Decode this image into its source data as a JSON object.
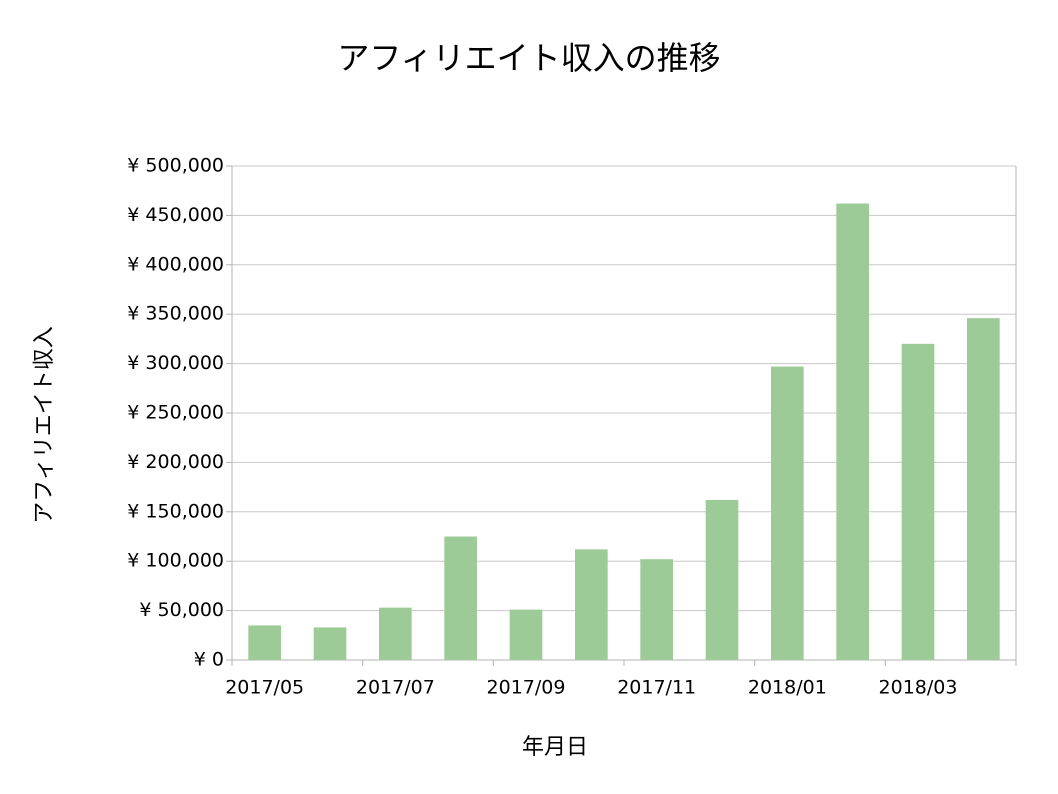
{
  "chart_data": {
    "type": "bar",
    "title": "アフィリエイト収入の推移",
    "x_label": "年月日",
    "y_label": "アフィリエイト収入",
    "categories": [
      "2017/05",
      null,
      "2017/07",
      null,
      "2017/09",
      null,
      "2017/11",
      null,
      "2018/01",
      null,
      "2018/03",
      null
    ],
    "values": [
      35000,
      33000,
      53000,
      125000,
      51000,
      112000,
      102000,
      162000,
      297000,
      462000,
      320000,
      346000
    ],
    "color": "#9dcb97",
    "ylim": [
      0,
      500000
    ],
    "yticks": [
      {
        "value": 0,
        "label": "¥ 0"
      },
      {
        "value": 50000,
        "label": "¥ 50,000"
      },
      {
        "value": 100000,
        "label": "¥ 100,000"
      },
      {
        "value": 150000,
        "label": "¥ 150,000"
      },
      {
        "value": 200000,
        "label": "¥ 200,000"
      },
      {
        "value": 250000,
        "label": "¥ 250,000"
      },
      {
        "value": 300000,
        "label": "¥ 300,000"
      },
      {
        "value": 350000,
        "label": "¥ 350,000"
      },
      {
        "value": 400000,
        "label": "¥ 400,000"
      },
      {
        "value": 450000,
        "label": "¥ 450,000"
      },
      {
        "value": 500000,
        "label": "¥ 500,000"
      }
    ],
    "grid": true
  }
}
